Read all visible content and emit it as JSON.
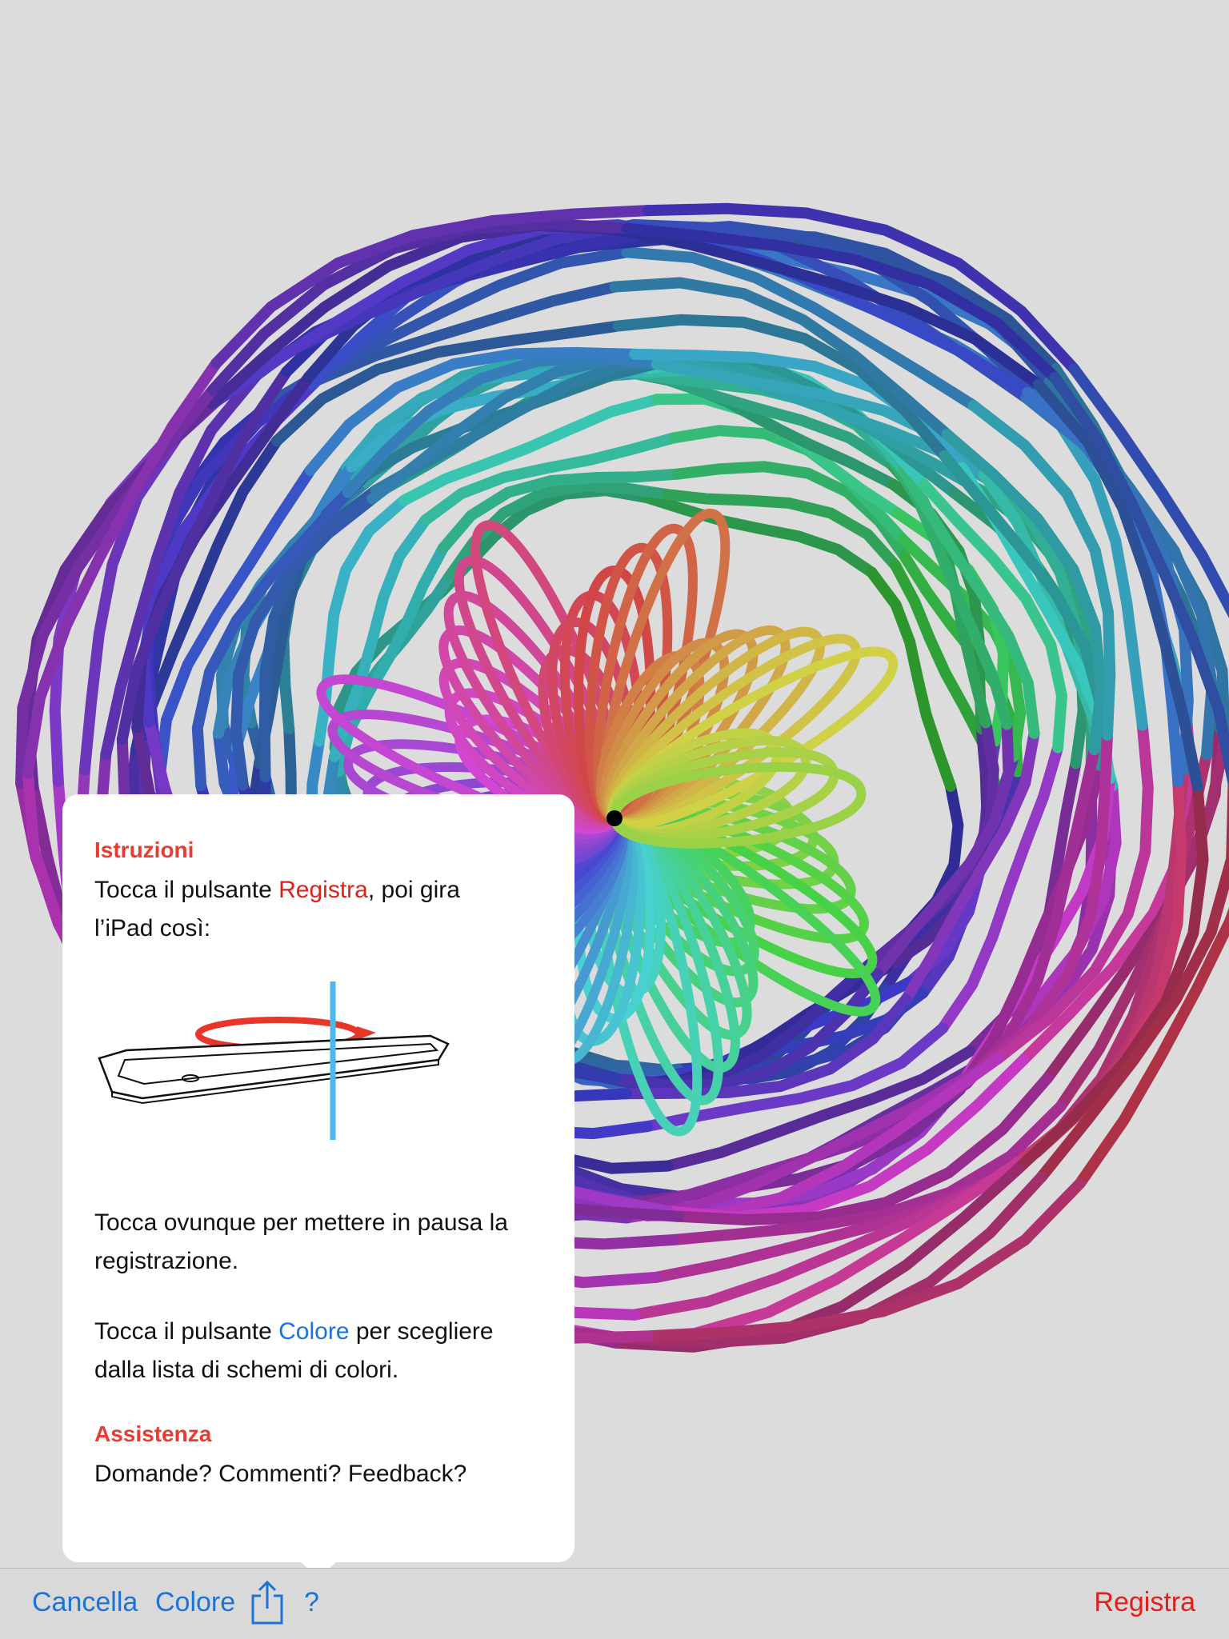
{
  "instructions": {
    "title": "Istruzioni",
    "p1": {
      "before": "Tocca il pulsante ",
      "highlight": "Registra",
      "after_line1": ", poi gira",
      "line2": "l’iPad così:"
    },
    "p2": {
      "line1": "Tocca ovunque per mettere in pausa la",
      "line2": "registrazione."
    },
    "p3": {
      "before": "Tocca il pulsante ",
      "highlight": "Colore",
      "after_line1": " per scegliere",
      "line2": "dalla lista di schemi di colori."
    }
  },
  "support": {
    "title": "Assistenza",
    "line1": "Domande? Commenti? Feedback?"
  },
  "toolbar": {
    "clear_label": "Cancella",
    "color_label": "Colore",
    "share_icon": "share-icon",
    "help_label": "?",
    "record_label": "Registra"
  },
  "colors": {
    "background": "#dcdcdc",
    "accent_blue": "#1a73d8",
    "accent_red": "#e0201b",
    "heading_red": "#ec3b2e",
    "rotation_arrow": "#e8362a",
    "axis_blue": "#4db8ea"
  }
}
